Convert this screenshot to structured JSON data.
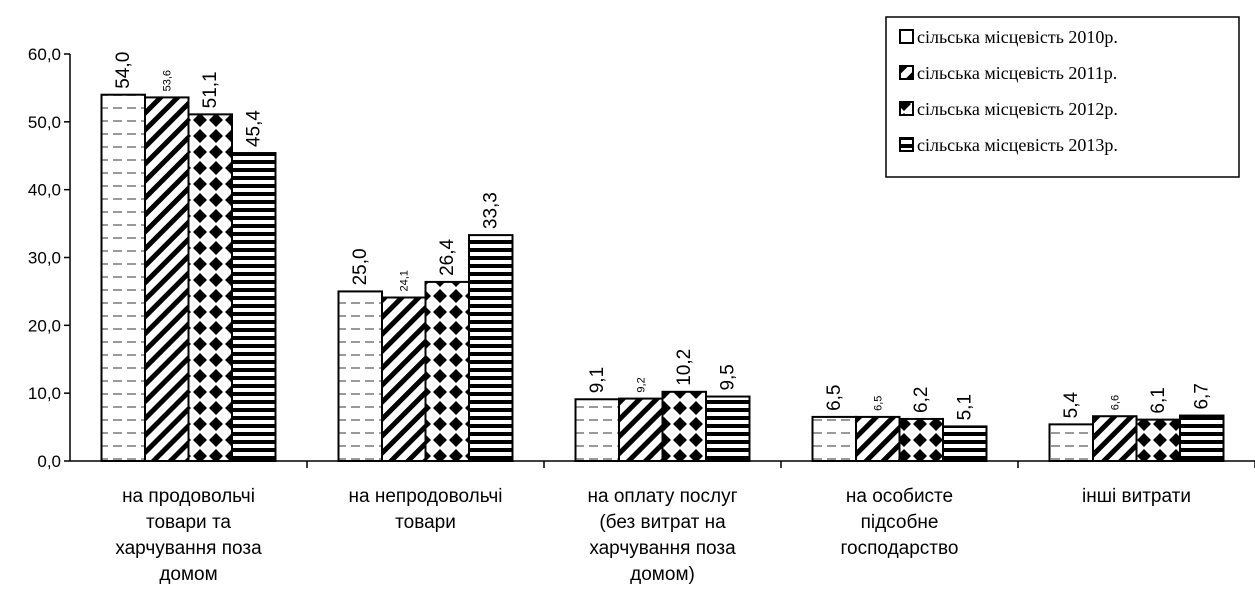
{
  "chart_data": {
    "type": "bar",
    "title": "",
    "xlabel": "",
    "ylabel": "",
    "ylim": [
      0,
      60
    ],
    "ytick_labels": [
      "0,0",
      "10,0",
      "20,0",
      "30,0",
      "40,0",
      "50,0",
      "60,0"
    ],
    "categories": [
      [
        "на продовольчі",
        "товари та",
        "харчування поза",
        "домом"
      ],
      [
        "на непродовольчі",
        "товари"
      ],
      [
        "на оплату послуг",
        "(без витрат на",
        "харчування поза",
        "домом)"
      ],
      [
        "на особисте",
        "підсобне",
        "господарство"
      ],
      [
        "інші витрати"
      ]
    ],
    "series": [
      {
        "name": "сільська місцевість 2010р.",
        "values": [
          54.0,
          25.0,
          9.1,
          6.5,
          5.4
        ],
        "labels": [
          "54,0",
          "25,0",
          "9,1",
          "6,5",
          "5,4"
        ],
        "pattern": "dashes"
      },
      {
        "name": "сільська місцевість 2011р.",
        "values": [
          53.6,
          24.1,
          9.2,
          6.5,
          6.6
        ],
        "labels": [
          "53,6",
          "24,1",
          "9,2",
          "6,5",
          "6,6"
        ],
        "pattern": "diagonal-stripes"
      },
      {
        "name": "сільська місцевість 2012р.",
        "values": [
          51.1,
          26.4,
          10.2,
          6.2,
          6.1
        ],
        "labels": [
          "51,1",
          "26,4",
          "10,2",
          "6,2",
          "6,1"
        ],
        "pattern": "diamonds"
      },
      {
        "name": "сільська місцевість 2013р.",
        "values": [
          45.4,
          33.3,
          9.5,
          5.1,
          6.7
        ],
        "labels": [
          "45,4",
          "33,3",
          "9,5",
          "5,1",
          "6,7"
        ],
        "pattern": "horizontal-stripes"
      }
    ],
    "label_size_by_series": [
      "large",
      "small",
      "large",
      "large"
    ],
    "grid": false,
    "legend_position": "top-right"
  }
}
